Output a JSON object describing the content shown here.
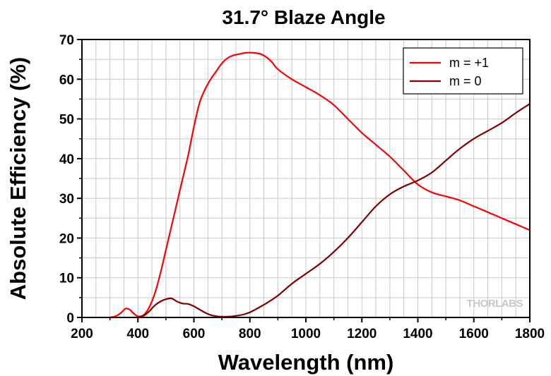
{
  "chart_data": {
    "type": "line",
    "title": "31.7° Blaze Angle",
    "xlabel": "Wavelength (nm)",
    "ylabel": "Absolute Efficiency (%)",
    "xlim": [
      200,
      1800
    ],
    "ylim": [
      0,
      70
    ],
    "xticks": [
      200,
      400,
      600,
      800,
      1000,
      1200,
      1400,
      1600,
      1800
    ],
    "yticks": [
      0,
      10,
      20,
      30,
      40,
      50,
      60,
      70
    ],
    "grid": true,
    "legend_position": "top-right",
    "series": [
      {
        "name": "m = +1",
        "color": "#ff0000",
        "x": [
          300,
          320,
          340,
          355,
          370,
          385,
          400,
          420,
          440,
          460,
          480,
          500,
          520,
          540,
          560,
          580,
          600,
          620,
          640,
          660,
          680,
          700,
          720,
          740,
          760,
          780,
          800,
          820,
          840,
          860,
          880,
          900,
          950,
          1000,
          1050,
          1100,
          1150,
          1200,
          1250,
          1300,
          1350,
          1400,
          1450,
          1500,
          1550,
          1600,
          1650,
          1700,
          1750,
          1800
        ],
        "y": [
          0,
          0.3,
          1.2,
          2.2,
          2.0,
          1.0,
          0.3,
          0.6,
          2.5,
          6,
          11,
          17,
          23,
          29,
          35,
          41,
          48,
          54,
          57.5,
          60,
          62,
          64,
          65.3,
          66,
          66.3,
          66.6,
          66.7,
          66.6,
          66.3,
          65.5,
          64.2,
          62.5,
          60,
          58,
          56,
          53.5,
          50,
          46.5,
          43.5,
          40.5,
          37,
          33.5,
          31.5,
          30.5,
          29.5,
          28,
          26.5,
          25,
          23.5,
          22
        ]
      },
      {
        "name": "m = 0",
        "color": "#800000",
        "x": [
          400,
          420,
          440,
          460,
          480,
          500,
          520,
          540,
          560,
          580,
          600,
          620,
          640,
          660,
          680,
          700,
          720,
          740,
          760,
          780,
          800,
          820,
          840,
          860,
          900,
          950,
          1000,
          1050,
          1100,
          1150,
          1200,
          1250,
          1300,
          1350,
          1400,
          1450,
          1500,
          1550,
          1600,
          1650,
          1700,
          1750,
          1800
        ],
        "y": [
          0,
          0.4,
          1.5,
          3,
          4,
          4.6,
          4.8,
          4.0,
          3.5,
          3.4,
          2.8,
          2.0,
          1.2,
          0.6,
          0.3,
          0.2,
          0.2,
          0.3,
          0.5,
          0.8,
          1.3,
          2.0,
          2.8,
          3.6,
          5.5,
          8.5,
          11,
          13.5,
          16.5,
          20,
          24,
          28,
          31,
          33,
          34.5,
          36.5,
          39.5,
          42.5,
          45,
          47,
          49,
          51.5,
          53.8
        ]
      }
    ]
  },
  "watermark": "THORLABS"
}
